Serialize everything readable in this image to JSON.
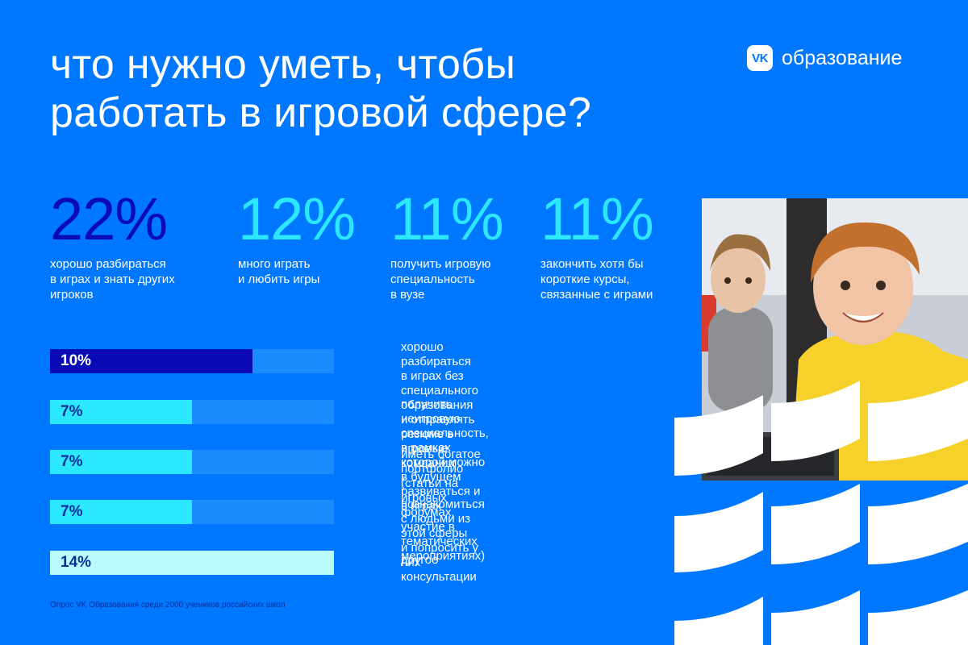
{
  "header": {
    "title_line1": "что нужно уметь, чтобы",
    "title_line2": "работать в игровой сфере?",
    "logo_mark": "VK",
    "logo_text": "образование"
  },
  "colors": {
    "background": "#0077FF",
    "dark_blue": "#0A0BB4",
    "cyan": "#2CE8FF",
    "light_cyan": "#B8FBFF",
    "track": "#1A8CFF"
  },
  "chart_data": [
    {
      "type": "table",
      "items": [
        {
          "value": "22%",
          "label": "хорошо разбираться\nв играх и знать других\nигроков",
          "color": "#0A0BB4"
        },
        {
          "value": "12%",
          "label": "много играть\nи любить игры",
          "color": "#2CE8FF"
        },
        {
          "value": "11%",
          "label": "получить игровую\nспециальность\nв вузе",
          "color": "#2CE8FF"
        },
        {
          "value": "11%",
          "label": "закончить хотя бы\nкороткие курсы,\nсвязанные с играми",
          "color": "#2CE8FF"
        }
      ]
    },
    {
      "type": "bar",
      "orientation": "horizontal",
      "xlim": [
        0,
        14
      ],
      "categories": [
        "хорошо разбираться в играх без специального\nобразования и отправлять резюме в игровые\nкомпании",
        "получить неигровую специальность, в рамках\nкоторой можно в будущем развиваться и в играх",
        "иметь богатое портфолио (статьи на игровых\nфорумах, участие в тематических мероприятиях)",
        "познакомиться с людьми из этой сферы\nи попросить у них консультации",
        "другое"
      ],
      "values": [
        10,
        7,
        7,
        7,
        14
      ],
      "value_labels": [
        "10%",
        "7%",
        "7%",
        "7%",
        "14%"
      ],
      "colors": [
        "#0A0BB4",
        "#2CE8FF",
        "#2CE8FF",
        "#2CE8FF",
        "#B8FBFF"
      ],
      "label_colors": [
        "#ffffff",
        "#0A2E99",
        "#0A2E99",
        "#0A2E99",
        "#0A2E99"
      ]
    }
  ],
  "footnote": "Опрос VK Образования среди 2000 учеников российских школ"
}
